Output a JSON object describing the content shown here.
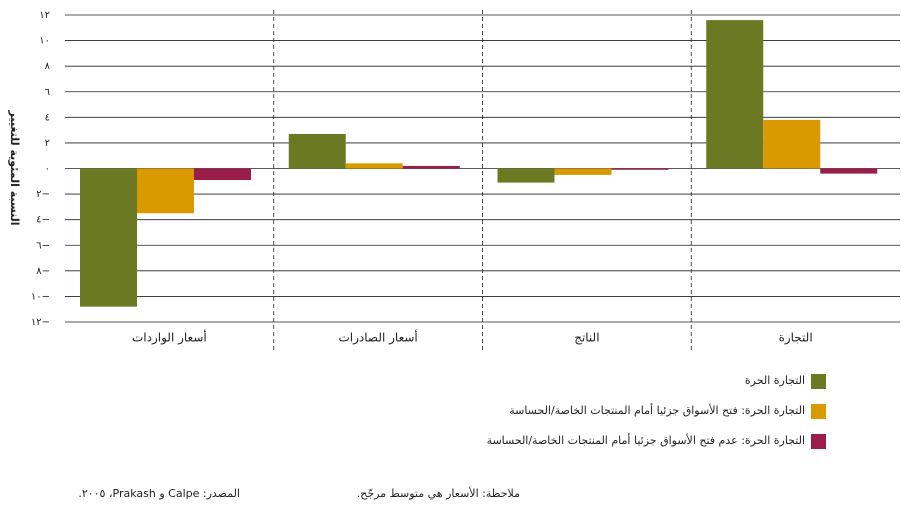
{
  "chart_data": {
    "type": "bar",
    "y_label": "النسبة المئوية للتغيير",
    "categories": [
      "أسعار الواردات",
      "أسعار الصادرات",
      "الناتج",
      "التجارة"
    ],
    "series": [
      {
        "name": "التجارة الحرة",
        "color": "#6b7a22",
        "values": [
          -10.8,
          2.7,
          -1.1,
          11.6
        ]
      },
      {
        "name": "التجارة الحرة: فتح الأسواق جزئيا أمام المنتجات الخاصة/الحساسة",
        "color": "#d99a00",
        "values": [
          -3.5,
          0.4,
          -0.5,
          3.8
        ]
      },
      {
        "name": "التجارة الحرة: عدم فتح الأسواق جزئيا أمام المنتجات الخاصة/الحساسة",
        "color": "#9b1d4a",
        "values": [
          -0.9,
          0.2,
          -0.1,
          -0.4
        ]
      }
    ],
    "ylim": [
      -12,
      12
    ],
    "yticks": [
      {
        "value": 12,
        "label": "١٢"
      },
      {
        "value": 10,
        "label": "١٠"
      },
      {
        "value": 8,
        "label": "٨"
      },
      {
        "value": 6,
        "label": "٦"
      },
      {
        "value": 4,
        "label": "٤"
      },
      {
        "value": 2,
        "label": "٢"
      },
      {
        "value": 0,
        "label": "٠"
      },
      {
        "value": -2,
        "label": "٢−"
      },
      {
        "value": -4,
        "label": "٤−"
      },
      {
        "value": -6,
        "label": "٦−"
      },
      {
        "value": -8,
        "label": "٨−"
      },
      {
        "value": -10,
        "label": "١٠−"
      },
      {
        "value": -12,
        "label": "١٢−"
      }
    ],
    "grid": true,
    "note": "ملاحظة: الأسعار هي متوسط مرجّح.",
    "source": "المصدر: Calpe و Prakash، ٢٠٠٥."
  }
}
